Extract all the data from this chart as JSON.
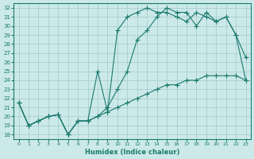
{
  "xlabel": "Humidex (Indice chaleur)",
  "ylabel": "",
  "xlim": [
    -0.5,
    23.5
  ],
  "ylim": [
    17.5,
    32.5
  ],
  "xticks": [
    0,
    1,
    2,
    3,
    4,
    5,
    6,
    7,
    8,
    9,
    10,
    11,
    12,
    13,
    14,
    15,
    16,
    17,
    18,
    19,
    20,
    21,
    22,
    23
  ],
  "yticks": [
    18,
    19,
    20,
    21,
    22,
    23,
    24,
    25,
    26,
    27,
    28,
    29,
    30,
    31,
    32
  ],
  "bg_color": "#cce9e9",
  "line_color": "#1a7a6e",
  "grid_color": "#a0c8c8",
  "series": {
    "line1_x": [
      0,
      1,
      2,
      3,
      4,
      5,
      6,
      7,
      8,
      9,
      10,
      11,
      12,
      13,
      14,
      15,
      16,
      17,
      18,
      19,
      20,
      21,
      22,
      23
    ],
    "line1_y": [
      21.5,
      19.0,
      19.5,
      20.0,
      20.2,
      18.0,
      19.5,
      19.5,
      20.0,
      20.5,
      21.0,
      21.5,
      22.0,
      22.5,
      23.0,
      23.5,
      23.5,
      24.0,
      24.0,
      24.5,
      24.5,
      24.5,
      24.5,
      24.0
    ],
    "line2_x": [
      0,
      1,
      2,
      3,
      4,
      5,
      6,
      7,
      8,
      9,
      10,
      11,
      12,
      13,
      14,
      15,
      16,
      17,
      18,
      19,
      20,
      21,
      22,
      23
    ],
    "line2_y": [
      21.5,
      19.0,
      19.5,
      20.0,
      20.2,
      18.0,
      19.5,
      19.5,
      20.0,
      21.0,
      23.0,
      25.0,
      28.5,
      29.5,
      31.0,
      32.0,
      31.5,
      31.5,
      30.0,
      31.5,
      30.5,
      31.0,
      29.0,
      26.5
    ],
    "line3_x": [
      0,
      1,
      2,
      3,
      4,
      5,
      6,
      7,
      8,
      9,
      10,
      11,
      12,
      13,
      14,
      15,
      16,
      17,
      18,
      19,
      20,
      21,
      22,
      23
    ],
    "line3_y": [
      21.5,
      19.0,
      19.5,
      20.0,
      20.2,
      18.0,
      19.5,
      19.5,
      25.0,
      20.5,
      29.5,
      31.0,
      31.5,
      32.0,
      31.5,
      31.5,
      31.0,
      30.5,
      31.5,
      31.0,
      30.5,
      31.0,
      29.0,
      24.0
    ]
  }
}
